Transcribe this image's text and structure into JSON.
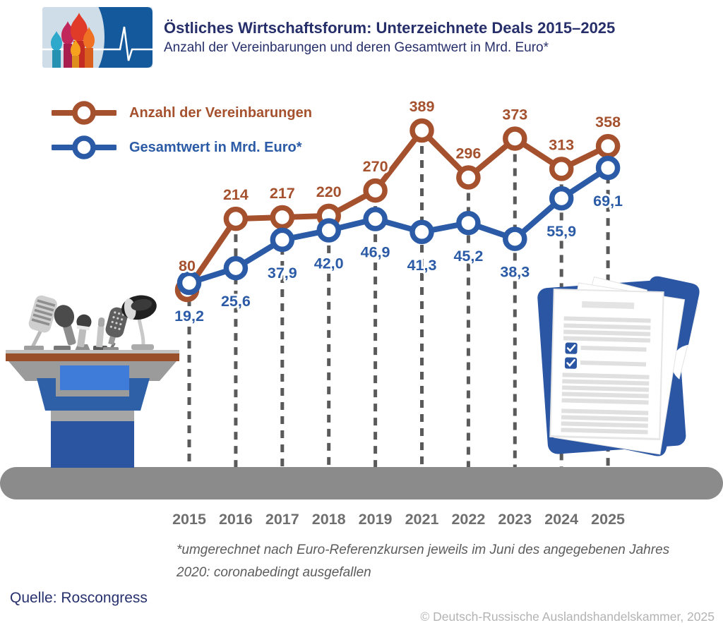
{
  "header": {
    "title": "Östliches Wirtschaftsforum: Unterzeichnete Deals 2015–2025",
    "subtitle": "Anzahl der Vereinbarungen und deren Gesamtwert in Mrd. Euro*"
  },
  "legend": [
    {
      "label": "Anzahl der Vereinbarungen",
      "color": "#A5512E"
    },
    {
      "label": "Gesamtwert in Mrd. Euro*",
      "color": "#2B5BA6"
    }
  ],
  "chart_data": {
    "type": "line",
    "title": "Östliches Wirtschaftsforum: Unterzeichnete Deals 2015–2025",
    "categories": [
      "2015",
      "2016",
      "2017",
      "2018",
      "2019",
      "2021",
      "2022",
      "2023",
      "2024",
      "2025"
    ],
    "series": [
      {
        "name": "Anzahl der Vereinbarungen",
        "color": "#A5512E",
        "values": [
          80,
          214,
          217,
          220,
          270,
          389,
          296,
          373,
          313,
          358
        ],
        "labels": [
          "80",
          "214",
          "217",
          "220",
          "270",
          "389",
          "296",
          "373",
          "313",
          "358"
        ]
      },
      {
        "name": "Gesamtwert in Mrd. Euro*",
        "color": "#2B5BA6",
        "values": [
          19.2,
          25.6,
          37.9,
          42.0,
          46.9,
          41.3,
          45.2,
          38.3,
          55.9,
          69.1
        ],
        "labels": [
          "19,2",
          "25,6",
          "37,9",
          "42,0",
          "46,9",
          "41,3",
          "45,2",
          "38,3",
          "55,9",
          "69,1"
        ]
      }
    ],
    "legend_position": "top-left",
    "grid": "dashed-vertical-per-category",
    "marker": "open-circle"
  },
  "colors": {
    "navy_text": "#272F6B",
    "dash_line": "#5A5A5A",
    "year_label": "#6F6F6F",
    "floor": "#8B8B8B",
    "footnote": "#5C5C5C",
    "copyright": "#B3B3B3"
  },
  "icons": {
    "logo_left": "cathedral-domes",
    "logo_right": "ecg-pulse-line",
    "left_illustration": "podium-with-microphones",
    "right_illustration": "folder-with-documents-checklist"
  },
  "footnotes": [
    "*umgerechnet nach Euro-Referenzkursen jeweils im Juni des angegebenen Jahres",
    "2020: coronabedingt ausgefallen"
  ],
  "source": "Quelle: Roscongress",
  "copyright": "© Deutsch-Russische Auslandshandelskammer, 2025"
}
